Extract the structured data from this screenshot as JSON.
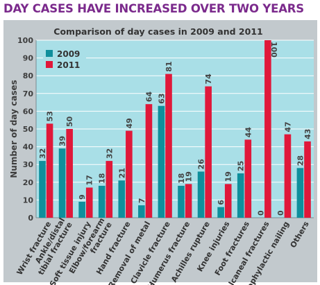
{
  "headline": "DAY CASES HAVE INCREASED OVER TWO YEARS",
  "colors": {
    "panel": "#c2c9cd",
    "plot": "#a9dfe7",
    "grid": "#ffffff",
    "series_2009": "#0f8f9c",
    "series_2011": "#e0183a",
    "headline": "#7b2a8c",
    "text": "#3d3d3d"
  },
  "chart_data": {
    "type": "bar",
    "title": "Comparison of day cases in 2009 and 2011",
    "ylabel": "Number of day cases",
    "xlabel": "",
    "ylim": [
      0,
      100
    ],
    "yticks": [
      0,
      10,
      20,
      30,
      40,
      50,
      60,
      70,
      80,
      90,
      100
    ],
    "grid": true,
    "legend_position": "top-left",
    "categories": [
      [
        "Wrist fracture"
      ],
      [
        "Ankle/distal",
        "tibial fracture"
      ],
      [
        "Soft tissue injury"
      ],
      [
        "Elbow/forearm",
        "fracture"
      ],
      [
        "Hand fracture"
      ],
      [
        "Removal of metal"
      ],
      [
        "Clavicle fracture"
      ],
      [
        "Humerus fracture"
      ],
      [
        "Achilles rupture"
      ],
      [
        "Knee injuries"
      ],
      [
        "Foot fractures"
      ],
      [
        "Calcaneal fractures"
      ],
      [
        "Prophylactic nailing"
      ],
      [
        "Others"
      ]
    ],
    "series": [
      {
        "name": "2009",
        "values": [
          32,
          39,
          9,
          18,
          21,
          7,
          63,
          18,
          26,
          6,
          25,
          0,
          0,
          28
        ]
      },
      {
        "name": "2011",
        "values": [
          53,
          50,
          17,
          32,
          49,
          64,
          81,
          19,
          74,
          19,
          44,
          100,
          47,
          43
        ]
      }
    ]
  }
}
